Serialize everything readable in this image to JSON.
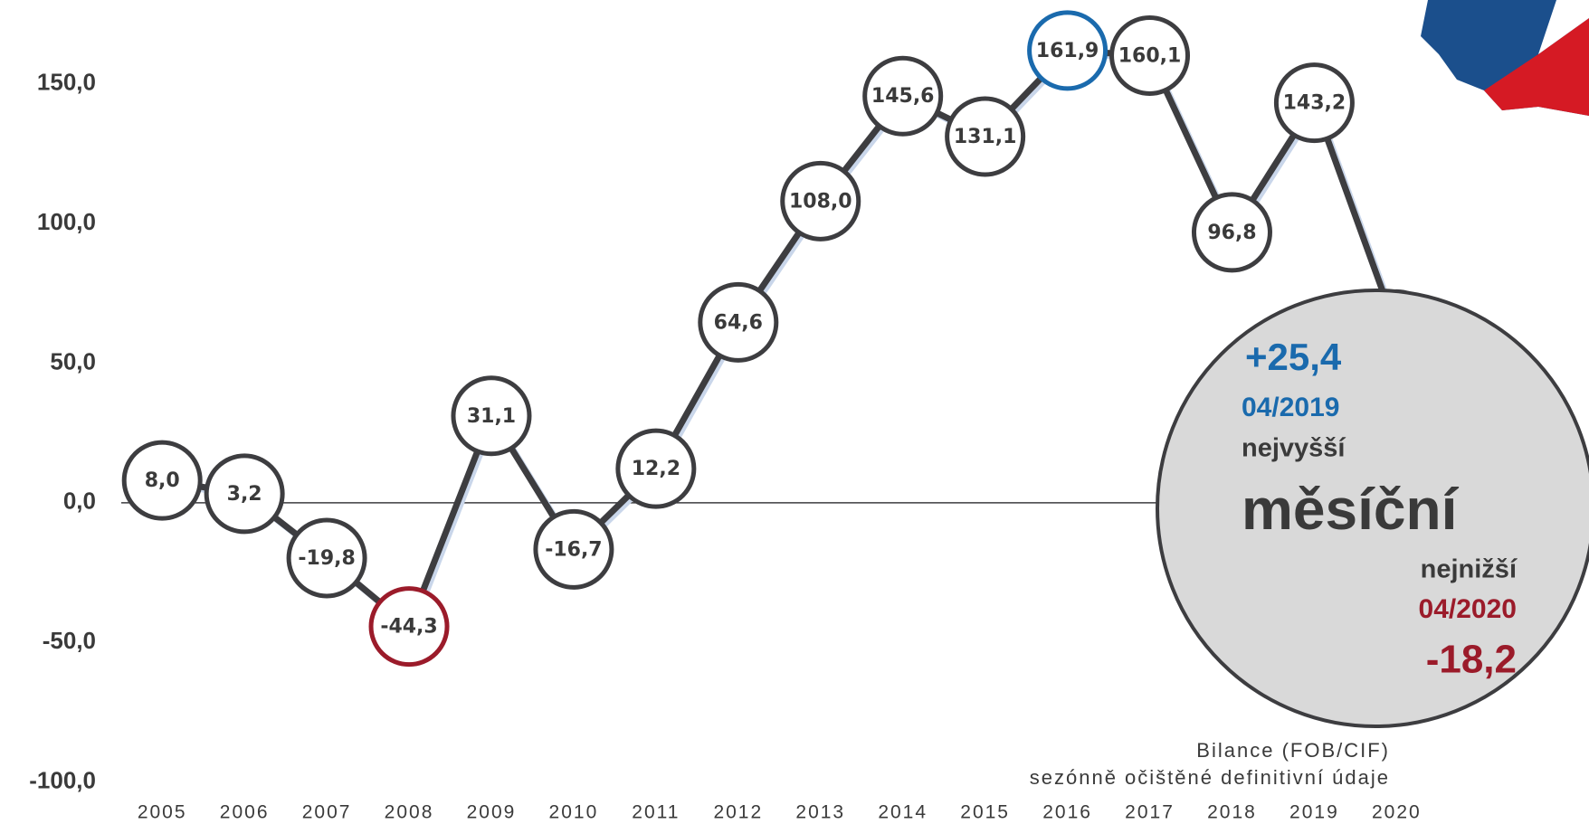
{
  "chart_data": {
    "type": "line",
    "categories": [
      "2005",
      "2006",
      "2007",
      "2008",
      "2009",
      "2010",
      "2011",
      "2012",
      "2013",
      "2014",
      "2015",
      "2016",
      "2017",
      "2018",
      "2019",
      "2020"
    ],
    "series": [
      {
        "color": "#3d3d40",
        "values": [
          8.0,
          3.2,
          -19.8,
          -44.3,
          31.1,
          -16.7,
          12.2,
          64.6,
          108.0,
          145.6,
          131.1,
          161.9,
          160.1,
          96.8,
          143.2,
          62
        ],
        "value_labels": [
          "8,0",
          "3,2",
          "-19,8",
          "-44,3",
          "31,1",
          "-16,7",
          "12,2",
          "64,6",
          "108,0",
          "145,6",
          "131,1",
          "161,9",
          "160,1",
          "96,8",
          "143,2",
          null
        ],
        "marker_colors": [
          "#3d3d40",
          "#3d3d40",
          "#3d3d40",
          "#9b1b2a",
          "#3d3d40",
          "#3d3d40",
          "#3d3d40",
          "#3d3d40",
          "#3d3d40",
          "#3d3d40",
          "#3d3d40",
          "#1a6aad",
          "#3d3d40",
          "#3d3d40",
          "#3d3d40",
          "#3d3d40"
        ]
      }
    ],
    "ylim": [
      -100,
      180
    ],
    "yticks": [
      {
        "value": -100,
        "label": "-100,0"
      },
      {
        "value": -50,
        "label": "-50,0"
      },
      {
        "value": 0,
        "label": "0,0"
      },
      {
        "value": 50,
        "label": "50,0"
      },
      {
        "value": 100,
        "label": "100,0"
      },
      {
        "value": 150,
        "label": "150,0"
      }
    ],
    "annotation": {
      "high_value": "+25,4",
      "high_date": "04/2019",
      "high_label": "nejvyšší",
      "title": "měsíční",
      "low_label": "nejnižší",
      "low_date": "04/2020",
      "low_value": "-18,2"
    },
    "footnote": [
      "Bilance (FOB/CIF)",
      "sezónně očištěné definitivní údaje"
    ]
  }
}
